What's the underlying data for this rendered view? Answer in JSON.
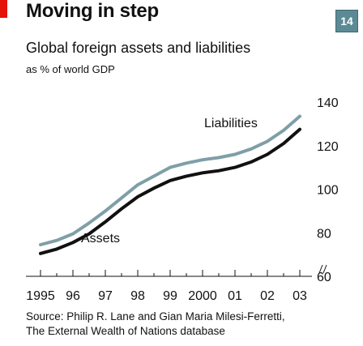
{
  "header": {
    "title": "Moving in step",
    "subtitle": "Global foreign assets and liabilities",
    "unit": "as % of world GDP",
    "badge": "14"
  },
  "source": {
    "line1": "Source: Philip R. Lane and Gian Maria Milesi-Ferretti,",
    "line2": "The External Wealth of Nations database"
  },
  "colors": {
    "accent_red": "#e3120b",
    "liabilities": "#7f9fa6",
    "assets": "#111111",
    "badge": "#5b8a94"
  },
  "chart_data": {
    "type": "line",
    "title": "Moving in step",
    "subtitle": "Global foreign assets and liabilities",
    "ylabel": "as % of world GDP",
    "xlabel": "",
    "x": [
      1995.0,
      1995.5,
      1996.0,
      1996.5,
      1997.0,
      1997.5,
      1998.0,
      1998.5,
      1999.0,
      1999.5,
      2000.0,
      2000.5,
      2001.0,
      2001.5,
      2002.0,
      2002.5,
      2003.0
    ],
    "x_tick_labels": [
      "1995",
      "96",
      "97",
      "98",
      "99",
      "2000",
      "01",
      "02",
      "03"
    ],
    "x_tick_values": [
      1995,
      1996,
      1997,
      1998,
      1999,
      2000,
      2001,
      2002,
      2003
    ],
    "ylim": [
      60,
      140
    ],
    "y_ticks": [
      60,
      80,
      100,
      120,
      140
    ],
    "y_axis_side": "right",
    "y_axis_break": true,
    "grid": false,
    "series": [
      {
        "name": "Liabilities",
        "color": "#7f9fa6",
        "values": [
          74.5,
          76.5,
          79.5,
          84.5,
          90,
          96,
          102,
          106,
          110,
          112,
          113.5,
          114.5,
          116,
          118.5,
          122,
          127,
          133.5
        ]
      },
      {
        "name": "Assets",
        "color": "#111111",
        "values": [
          70.5,
          72.5,
          75.5,
          79.5,
          85,
          91,
          96.5,
          100.5,
          104,
          106,
          107.5,
          108.5,
          110,
          112.5,
          116,
          121,
          127.5
        ]
      }
    ]
  }
}
